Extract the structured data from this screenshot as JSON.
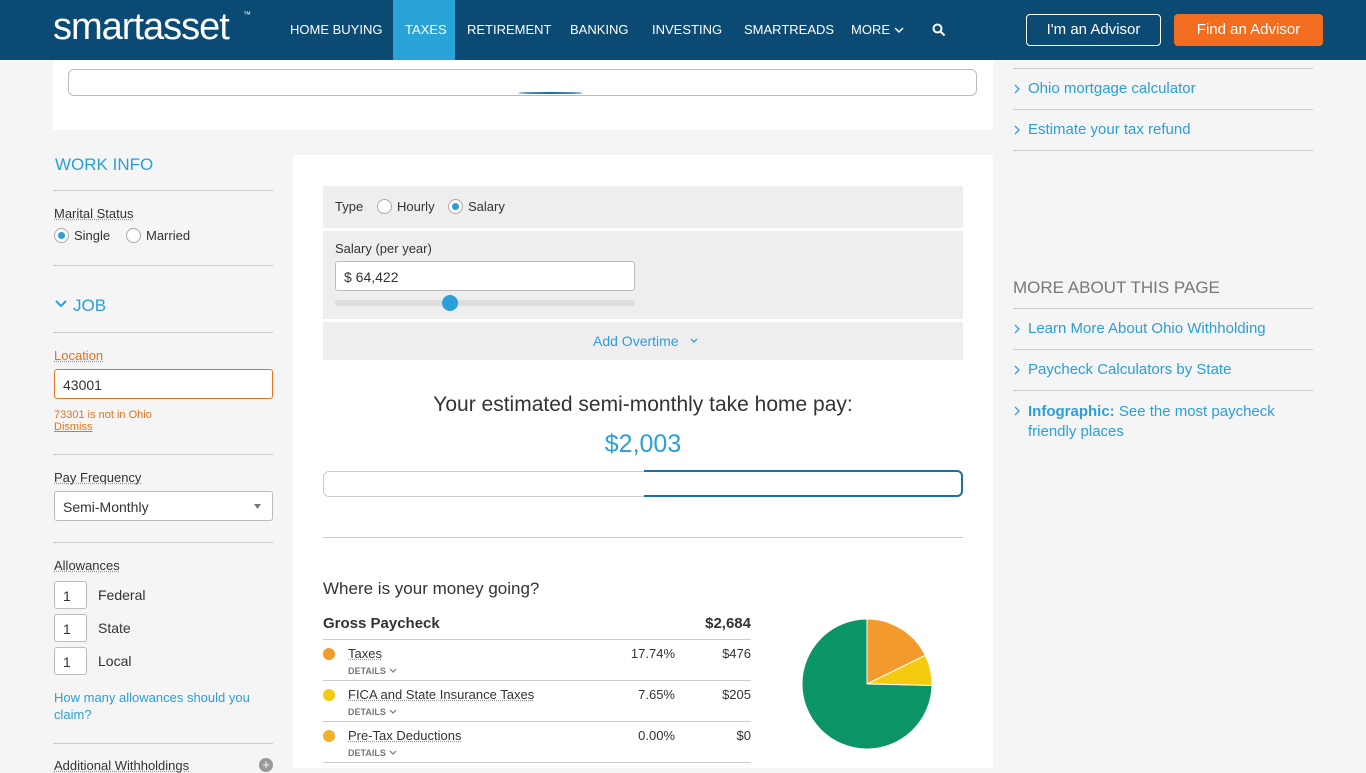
{
  "header": {
    "logo": "smartasset",
    "logo_tm": "™",
    "nav": [
      "HOME BUYING",
      "TAXES",
      "RETIREMENT",
      "BANKING",
      "INVESTING",
      "SMARTREADS",
      "MORE"
    ],
    "buttons": [
      "I'm an Advisor",
      "Find an Advisor"
    ]
  },
  "sidebar": {
    "title": "WORK INFO",
    "marital_label": "Marital Status",
    "marital_options": [
      "Single",
      "Married"
    ],
    "job_title": "JOB",
    "location_label": "Location",
    "location_value": "43001",
    "location_error": "73301 is not in Ohio",
    "dismiss": "Dismiss",
    "pay_frequency_label": "Pay Frequency",
    "pay_frequency_value": "Semi-Monthly",
    "allowances_label": "Allowances",
    "allowances": [
      {
        "value": "1",
        "label": "Federal"
      },
      {
        "value": "1",
        "label": "State"
      },
      {
        "value": "1",
        "label": "Local"
      }
    ],
    "allowances_help": "How many allowances should you claim?",
    "additional": "Additional Withholdings"
  },
  "calculator": {
    "type_label": "Type",
    "type_options": [
      "Hourly",
      "Salary"
    ],
    "salary_label": "Salary (per year)",
    "salary_value": "$ 64,422",
    "overtime": "Add Overtime",
    "result_title": "Your estimated semi-monthly take home pay:",
    "take_home": {
      "amount": 2003,
      "label": "$2,003",
      "color": "#0b9465"
    },
    "breakdown_title": "Where is your money going?",
    "gross_label": "Gross Paycheck",
    "gross_value": "$2,684",
    "rows": [
      {
        "name": "Taxes",
        "percent": "17.74%",
        "amount": 476,
        "amount_label": "$476",
        "color": "#f39a2c",
        "details": "DETAILS"
      },
      {
        "name": "FICA and State Insurance Taxes",
        "percent": "7.65%",
        "amount": 205,
        "amount_label": "$205",
        "color": "#f5cb0d",
        "details": "DETAILS"
      },
      {
        "name": "Pre-Tax Deductions",
        "percent": "0.00%",
        "amount": 0,
        "amount_label": "$0",
        "color": "#f2b12a",
        "details": "DETAILS"
      }
    ]
  },
  "right": {
    "links_top": [
      "Ohio mortgage calculator",
      "Estimate your tax refund"
    ],
    "more_title": "MORE ABOUT THIS PAGE",
    "links": [
      "Learn More About Ohio Withholding",
      "Paycheck Calculators by State"
    ],
    "infographic": {
      "bold": "Infographic:",
      "text": "See the most paycheck friendly places"
    }
  }
}
